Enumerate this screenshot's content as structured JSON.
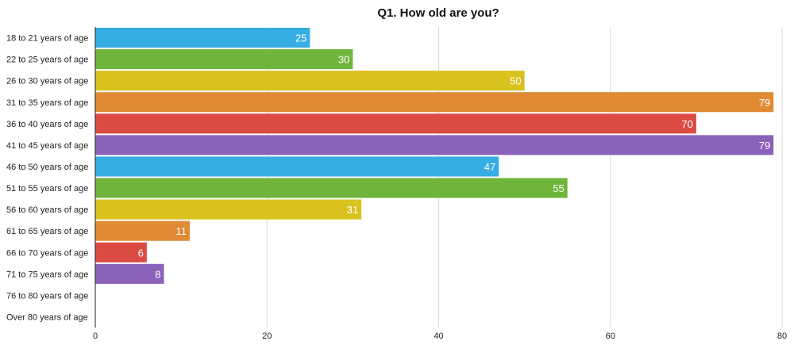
{
  "chart_data": {
    "type": "bar",
    "orientation": "horizontal",
    "title": "Q1. How old are you?",
    "categories": [
      "18 to 21 years of age",
      "22 to 25 years of age",
      "26 to 30 years of age",
      "31 to 35 years of age",
      "36 to 40 years of age",
      "41 to 45 years of age",
      "46 to 50 years of age",
      "51 to 55 years of age",
      "56 to 60 years of age",
      "61 to 65 years of age",
      "66 to 70 years of age",
      "71 to 75 years of age",
      "76 to 80 years of age",
      "Over 80 years of age"
    ],
    "values": [
      25,
      30,
      50,
      79,
      70,
      79,
      47,
      55,
      31,
      11,
      6,
      8,
      0,
      0
    ],
    "xlim": [
      0,
      80
    ],
    "xticks": [
      0,
      20,
      40,
      60,
      80
    ],
    "grid": true,
    "colors": [
      "#36ade3",
      "#6fb53c",
      "#d9c21e",
      "#e08a34",
      "#db4b43",
      "#8a62ba"
    ]
  }
}
